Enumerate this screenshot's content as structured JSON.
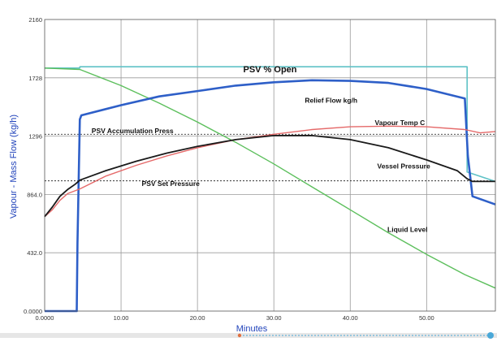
{
  "chart_data": {
    "type": "line",
    "xlabel": "Minutes",
    "ylabel": "Vapour - Mass Flow (kg/h)",
    "xlim": [
      0,
      59
    ],
    "ylim": [
      0,
      2160
    ],
    "x_ticks": [
      {
        "value": 0,
        "label": "0.0000"
      },
      {
        "value": 10,
        "label": "10.00"
      },
      {
        "value": 20,
        "label": "20.00"
      },
      {
        "value": 30,
        "label": "30.00"
      },
      {
        "value": 40,
        "label": "40.00"
      },
      {
        "value": 50,
        "label": "50.00"
      }
    ],
    "y_ticks": [
      {
        "value": 0,
        "label": "0.0000"
      },
      {
        "value": 432,
        "label": "432.0"
      },
      {
        "value": 864,
        "label": "864.0"
      },
      {
        "value": 1296,
        "label": "1296"
      },
      {
        "value": 1728,
        "label": "1728"
      },
      {
        "value": 2160,
        "label": "2160"
      }
    ],
    "grid": true,
    "colors": {
      "axis_text": "#2244bb",
      "grid": "#9a9a9a",
      "background": "#ffffff",
      "border": "#555555"
    },
    "series": [
      {
        "name": "PSV % Open",
        "color": "#5fc2c6",
        "width": 1.6,
        "x": [
          0,
          4.6,
          4.6,
          55.3,
          55.3,
          59
        ],
        "y": [
          1800,
          1800,
          1810,
          1810,
          1030,
          960
        ]
      },
      {
        "name": "Liquid Level",
        "color": "#5cbf5c",
        "width": 1.4,
        "x": [
          0,
          4.6,
          10,
          15,
          20,
          25,
          30,
          35,
          40,
          45,
          50,
          55,
          59
        ],
        "y": [
          1800,
          1790,
          1670,
          1540,
          1400,
          1250,
          1090,
          920,
          750,
          580,
          420,
          270,
          170
        ]
      },
      {
        "name": "Relief Flow kg/h",
        "color": "#2e5fc8",
        "width": 2.6,
        "x": [
          0,
          4.2,
          4.3,
          4.6,
          4.8,
          10,
          15,
          20,
          25,
          30,
          35,
          40,
          45,
          50,
          55,
          55.4,
          56,
          59
        ],
        "y": [
          0,
          0,
          500,
          1420,
          1450,
          1525,
          1590,
          1630,
          1670,
          1695,
          1710,
          1705,
          1690,
          1645,
          1575,
          1150,
          850,
          790
        ]
      },
      {
        "name": "Vapour Temp C",
        "color": "#e56a6a",
        "width": 1.4,
        "x": [
          0,
          1,
          2,
          3,
          4.6,
          8,
          12,
          16,
          20,
          25,
          30,
          35,
          40,
          45,
          50,
          55,
          57,
          59
        ],
        "y": [
          700,
          750,
          820,
          870,
          905,
          1000,
          1080,
          1150,
          1210,
          1270,
          1310,
          1345,
          1365,
          1370,
          1365,
          1345,
          1320,
          1330
        ]
      },
      {
        "name": "Vessel Pressure",
        "color": "#1a1a1a",
        "width": 1.8,
        "x": [
          0,
          1,
          2,
          3,
          4,
          4.6,
          8,
          12,
          16,
          20,
          25,
          30,
          35,
          40,
          45,
          50,
          54,
          55.3,
          56,
          59
        ],
        "y": [
          700,
          770,
          850,
          900,
          940,
          970,
          1040,
          1110,
          1170,
          1220,
          1270,
          1300,
          1300,
          1270,
          1210,
          1120,
          1040,
          980,
          960,
          960
        ]
      }
    ],
    "reference_lines": [
      {
        "label": "PSV Accumulation Press",
        "y": 1310,
        "color": "#333333"
      },
      {
        "label": "PSV Set Pressure",
        "y": 965,
        "color": "#333333"
      }
    ],
    "annotations": [
      {
        "text": "PSV % Open",
        "x": 29.5,
        "y": 1800,
        "series": "PSV % Open"
      },
      {
        "text": "Relief Flow kg/h",
        "x": 37.5,
        "y": 1560,
        "series": "Relief Flow kg/h"
      },
      {
        "text": "Vapour Temp C",
        "x": 46.5,
        "y": 1395,
        "series": "Vapour Temp C"
      },
      {
        "text": "PSV Accumulation Press",
        "x": 11.5,
        "y": 1335,
        "series": "PSV Accumulation Press"
      },
      {
        "text": "Vessel Pressure",
        "x": 47,
        "y": 1075,
        "series": "Vessel Pressure"
      },
      {
        "text": "PSV Set Pressure",
        "x": 16.5,
        "y": 945,
        "series": "PSV Set Pressure"
      },
      {
        "text": "Liquid Level",
        "x": 47.5,
        "y": 605,
        "series": "Liquid Level"
      }
    ]
  }
}
